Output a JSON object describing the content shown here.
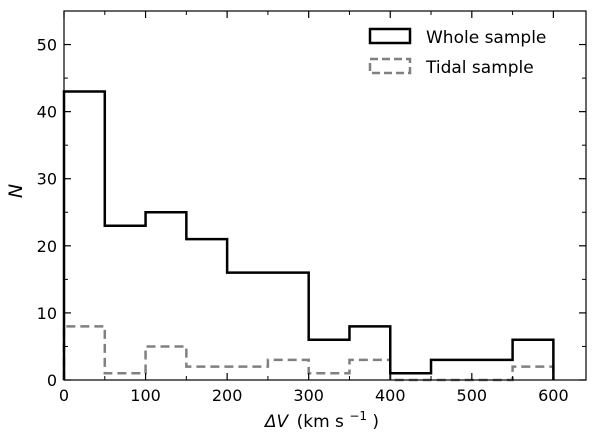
{
  "chart_data": {
    "type": "histogram",
    "xlabel_symbol": "ΔV",
    "xlabel_units": "(km s",
    "xlabel_exp": "−1",
    "xlabel_close": ")",
    "ylabel": "N",
    "xlim": [
      0,
      640
    ],
    "ylim": [
      0,
      55
    ],
    "xticks": [
      0,
      100,
      200,
      300,
      400,
      500,
      600
    ],
    "yticks": [
      0,
      10,
      20,
      30,
      40,
      50
    ],
    "minor_xticks": [
      50,
      150,
      250,
      350,
      450,
      550
    ],
    "minor_yticks": [
      5,
      15,
      25,
      35,
      45
    ],
    "bin_edges": [
      0,
      50,
      100,
      150,
      200,
      250,
      300,
      350,
      400,
      450,
      500,
      550,
      600
    ],
    "series": [
      {
        "name": "Whole sample",
        "counts": [
          43,
          23,
          25,
          21,
          16,
          16,
          6,
          8,
          1,
          3,
          3,
          6
        ],
        "color": "#000000",
        "style": "solid"
      },
      {
        "name": "Tidal sample",
        "counts": [
          8,
          1,
          5,
          2,
          2,
          3,
          1,
          3,
          0,
          0,
          0,
          2
        ],
        "color": "#808080",
        "style": "dashed"
      }
    ],
    "legend_position": "top-right",
    "grid": false
  }
}
